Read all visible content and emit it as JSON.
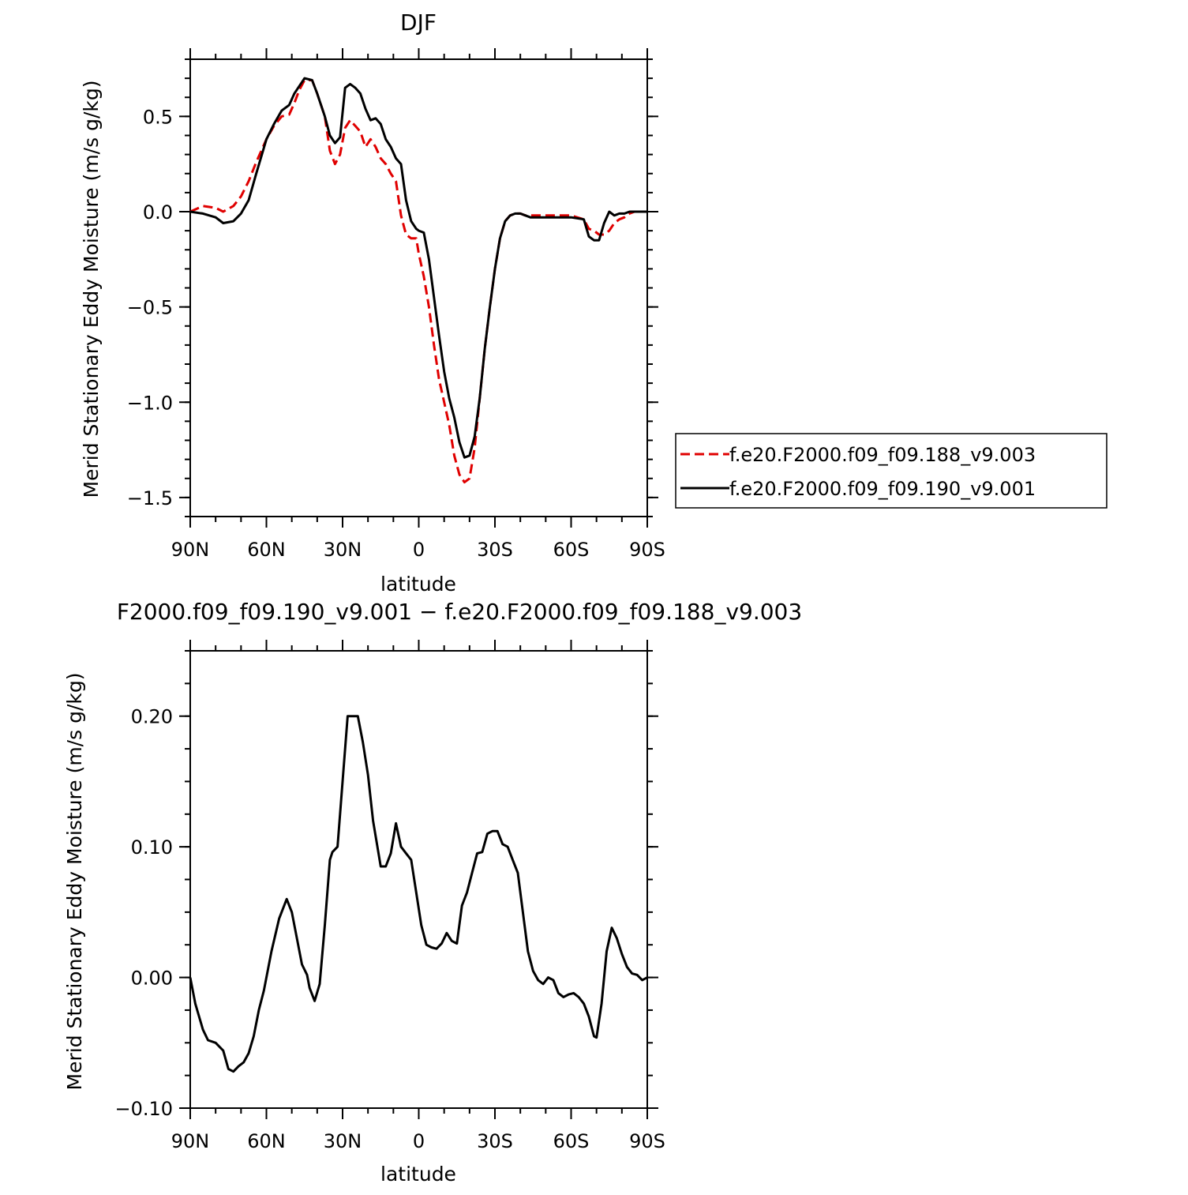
{
  "chart_data": [
    {
      "type": "line",
      "title": "DJF",
      "xlabel": "latitude",
      "ylabel": "Merid Stationary Eddy Moisture (m/s g/kg)",
      "xlim": [
        90,
        -90
      ],
      "ylim": [
        -1.6,
        0.8
      ],
      "xticks": [
        90,
        60,
        30,
        0,
        -30,
        -60,
        -90
      ],
      "xticklabels": [
        "90N",
        "60N",
        "30N",
        "0",
        "30S",
        "60S",
        "90S"
      ],
      "yticks": [
        0.5,
        0.0,
        -0.5,
        -1.0,
        -1.5
      ],
      "yticklabels": [
        "0.5",
        "0.0",
        "−0.5",
        "−1.0",
        "−1.5"
      ],
      "grid": false,
      "legend": "right",
      "series": [
        {
          "name": "f.e20.F2000.f09_f09.188_v9.003",
          "color": "#e00000",
          "dash": "dashed",
          "x": [
            90,
            85,
            80,
            77,
            73,
            70,
            67,
            64,
            60,
            57,
            54,
            51,
            49,
            47,
            45,
            42,
            40,
            37,
            35,
            33,
            31,
            29,
            27,
            25,
            23,
            21,
            19,
            17,
            15,
            13,
            11,
            9,
            7,
            5,
            3,
            1,
            0,
            -2,
            -4,
            -6,
            -8,
            -10,
            -12,
            -14,
            -16,
            -18,
            -20,
            -22,
            -24,
            -26,
            -28,
            -30,
            -32,
            -34,
            -36,
            -38,
            -40,
            -42,
            -44,
            -46,
            -48,
            -50,
            -55,
            -60,
            -65,
            -67,
            -69,
            -71,
            -73,
            -75,
            -77,
            -79,
            -81,
            -83,
            -85,
            -88,
            -90
          ],
          "y": [
            0.0,
            0.03,
            0.02,
            0.0,
            0.03,
            0.08,
            0.16,
            0.26,
            0.38,
            0.45,
            0.5,
            0.51,
            0.57,
            0.64,
            0.69,
            0.69,
            0.62,
            0.5,
            0.32,
            0.25,
            0.3,
            0.44,
            0.48,
            0.45,
            0.42,
            0.34,
            0.38,
            0.34,
            0.28,
            0.25,
            0.2,
            0.16,
            -0.02,
            -0.12,
            -0.14,
            -0.14,
            -0.22,
            -0.34,
            -0.5,
            -0.7,
            -0.88,
            -1.0,
            -1.12,
            -1.28,
            -1.38,
            -1.42,
            -1.4,
            -1.24,
            -0.98,
            -0.72,
            -0.5,
            -0.3,
            -0.14,
            -0.05,
            -0.02,
            -0.01,
            -0.01,
            -0.02,
            -0.02,
            -0.02,
            -0.02,
            -0.02,
            -0.02,
            -0.02,
            -0.04,
            -0.09,
            -0.1,
            -0.12,
            -0.12,
            -0.1,
            -0.06,
            -0.04,
            -0.03,
            -0.01,
            0.0,
            0.0,
            0.0
          ]
        },
        {
          "name": "f.e20.F2000.f09_f09.190_v9.001",
          "color": "#000000",
          "dash": "solid",
          "x": [
            90,
            85,
            80,
            77,
            73,
            70,
            67,
            64,
            60,
            57,
            54,
            51,
            49,
            47,
            45,
            42,
            40,
            37,
            35,
            33,
            31,
            29,
            27,
            25,
            23,
            21,
            19,
            17,
            15,
            13,
            11,
            9,
            7,
            5,
            3,
            1,
            0,
            -2,
            -4,
            -6,
            -8,
            -10,
            -12,
            -14,
            -16,
            -18,
            -20,
            -22,
            -24,
            -26,
            -28,
            -30,
            -32,
            -34,
            -36,
            -38,
            -40,
            -42,
            -44,
            -46,
            -48,
            -50,
            -55,
            -60,
            -65,
            -67,
            -69,
            -71,
            -73,
            -75,
            -77,
            -79,
            -81,
            -83,
            -85,
            -88,
            -90
          ],
          "y": [
            0.0,
            -0.01,
            -0.03,
            -0.06,
            -0.05,
            -0.01,
            0.06,
            0.2,
            0.38,
            0.46,
            0.53,
            0.56,
            0.62,
            0.66,
            0.7,
            0.69,
            0.62,
            0.5,
            0.4,
            0.36,
            0.39,
            0.65,
            0.67,
            0.65,
            0.62,
            0.54,
            0.48,
            0.49,
            0.46,
            0.38,
            0.34,
            0.28,
            0.25,
            0.06,
            -0.05,
            -0.09,
            -0.1,
            -0.11,
            -0.25,
            -0.45,
            -0.65,
            -0.84,
            -0.98,
            -1.08,
            -1.21,
            -1.29,
            -1.28,
            -1.18,
            -0.98,
            -0.72,
            -0.5,
            -0.3,
            -0.14,
            -0.05,
            -0.02,
            -0.01,
            -0.01,
            -0.02,
            -0.03,
            -0.03,
            -0.03,
            -0.03,
            -0.03,
            -0.03,
            -0.04,
            -0.13,
            -0.15,
            -0.15,
            -0.06,
            0.0,
            -0.02,
            -0.01,
            -0.01,
            0.0,
            0.0,
            0.0,
            0.0
          ]
        }
      ]
    },
    {
      "type": "line",
      "title": "F2000.f09_f09.190_v9.001  −  f.e20.F2000.f09_f09.188_v9.003",
      "xlabel": "latitude",
      "ylabel": "Merid Stationary Eddy Moisture (m/s g/kg)",
      "xlim": [
        90,
        -90
      ],
      "ylim": [
        -0.1,
        0.25
      ],
      "xticks": [
        90,
        60,
        30,
        0,
        -30,
        -60,
        -90
      ],
      "xticklabels": [
        "90N",
        "60N",
        "30N",
        "0",
        "30S",
        "60S",
        "90S"
      ],
      "yticks": [
        0.2,
        0.1,
        0.0,
        -0.1
      ],
      "yticklabels": [
        "0.20",
        "0.10",
        "0.00",
        "−0.10"
      ],
      "grid": false,
      "series": [
        {
          "color": "#000000",
          "dash": "solid",
          "x": [
            90,
            88,
            85,
            83,
            80,
            77,
            75,
            73,
            71,
            69,
            67,
            65,
            63,
            61,
            58,
            55,
            52,
            50,
            48,
            46,
            44,
            43,
            41,
            39,
            37,
            35,
            34,
            32,
            30,
            28,
            26,
            24,
            22,
            20,
            18,
            15,
            13,
            11,
            9,
            7,
            5,
            3,
            1,
            -1,
            -3,
            -5,
            -7,
            -9,
            -11,
            -13,
            -15,
            -17,
            -19,
            -21,
            -23,
            -25,
            -27,
            -29,
            -31,
            -33,
            -35,
            -37,
            -39,
            -41,
            -43,
            -45,
            -47,
            -49,
            -51,
            -53,
            -55,
            -57,
            -59,
            -61,
            -63,
            -65,
            -67,
            -69,
            -70,
            -72,
            -74,
            -76,
            -78,
            -80,
            -82,
            -84,
            -86,
            -88,
            -90
          ],
          "y": [
            0.0,
            -0.02,
            -0.04,
            -0.048,
            -0.05,
            -0.056,
            -0.07,
            -0.072,
            -0.068,
            -0.065,
            -0.058,
            -0.045,
            -0.025,
            -0.01,
            0.02,
            0.045,
            0.06,
            0.05,
            0.03,
            0.01,
            0.002,
            -0.008,
            -0.018,
            -0.005,
            0.04,
            0.09,
            0.096,
            0.1,
            0.15,
            0.2,
            0.2,
            0.2,
            0.18,
            0.155,
            0.12,
            0.085,
            0.085,
            0.095,
            0.118,
            0.1,
            0.095,
            0.09,
            0.065,
            0.04,
            0.025,
            0.023,
            0.022,
            0.026,
            0.034,
            0.028,
            0.026,
            0.055,
            0.065,
            0.08,
            0.095,
            0.096,
            0.11,
            0.112,
            0.112,
            0.102,
            0.1,
            0.09,
            0.08,
            0.05,
            0.02,
            0.005,
            -0.002,
            -0.005,
            0.0,
            -0.002,
            -0.012,
            -0.015,
            -0.013,
            -0.012,
            -0.015,
            -0.02,
            -0.03,
            -0.045,
            -0.046,
            -0.02,
            0.02,
            0.038,
            0.03,
            0.018,
            0.008,
            0.003,
            0.002,
            -0.002,
            0.0
          ]
        }
      ]
    }
  ]
}
